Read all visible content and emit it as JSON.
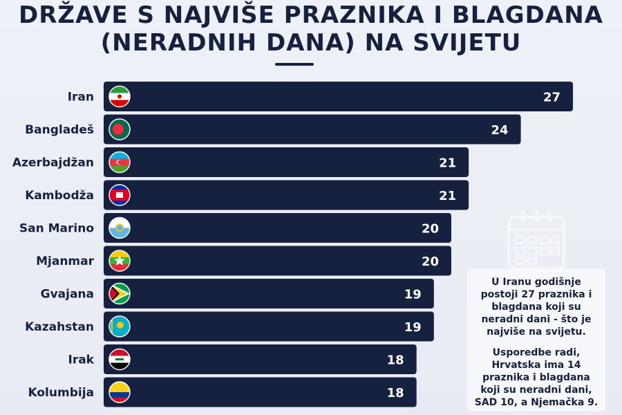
{
  "title": {
    "line1": "DRŽAVE S NAJVIŠE PRAZNIKA I BLAGDANA",
    "line2": "(NERADNIH DANA) NA SVIJETU"
  },
  "chart_data": {
    "type": "bar",
    "orientation": "horizontal",
    "categories": [
      "Iran",
      "Bangladeš",
      "Azerbajdžan",
      "Kambodža",
      "San Marino",
      "Mjanmar",
      "Gvajana",
      "Kazahstan",
      "Irak",
      "Kolumbija"
    ],
    "values": [
      27,
      24,
      21,
      21,
      20,
      20,
      19,
      19,
      18,
      18
    ],
    "bar_color": "#16213f",
    "data_labels": [
      "27",
      "24",
      "21",
      "21",
      "20",
      "20",
      "19",
      "19",
      "18",
      "18"
    ],
    "grid": false,
    "legend": "none"
  },
  "flags": [
    "iran-flag-icon",
    "bangladesh-flag-icon",
    "azerbaijan-flag-icon",
    "cambodia-flag-icon",
    "san-marino-flag-icon",
    "myanmar-flag-icon",
    "guyana-flag-icon",
    "kazakhstan-flag-icon",
    "iraq-flag-icon",
    "colombia-flag-icon"
  ],
  "info_box": {
    "paragraph1": "U Iranu godišnje postoji 27 praznika i blagdana koji su neradni dani - što je najviše na svijetu.",
    "paragraph2": "Usporedbe radi, Hrvatska ima 14 praznika i blagdana koji su neradni dani, SAD 10, a Njemačka 9."
  },
  "decor": {
    "icon": "calendar-icon"
  }
}
